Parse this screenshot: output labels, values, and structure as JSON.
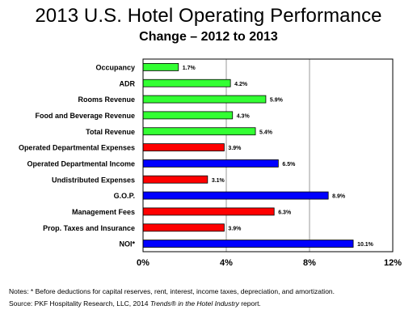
{
  "title": "2013 U.S. Hotel Operating Performance",
  "subtitle": "Change – 2012 to 2013",
  "notes": {
    "line1": "Notes: * Before deductions for capital reserves, rent, interest, income taxes, depreciation, and amortization.",
    "line2_prefix": "Source: PKF Hospitality Research, LLC, 2014 ",
    "line2_italic": "Trends® in the Hotel Industry",
    "line2_suffix": " report."
  },
  "colors": {
    "green": "#33ff33",
    "red": "#ff0000",
    "blue": "#0000ff",
    "grid": "#999999",
    "border": "#000000"
  },
  "chart_data": {
    "type": "bar",
    "orientation": "horizontal",
    "categories": [
      "Occupancy",
      "ADR",
      "Rooms Revenue",
      "Food and Beverage Revenue",
      "Total Revenue",
      "Operated Departmental Expenses",
      "Operated Departmental Income",
      "Undistributed Expenses",
      "G.O.P.",
      "Management Fees",
      "Prop. Taxes and Insurance",
      "NOI*"
    ],
    "values": [
      1.7,
      4.2,
      5.9,
      4.3,
      5.4,
      3.9,
      6.5,
      3.1,
      8.9,
      6.3,
      3.9,
      10.1
    ],
    "data_labels": [
      "1.7%",
      "4.2%",
      "5.9%",
      "4.3%",
      "5.4%",
      "3.9%",
      "6.5%",
      "3.1%",
      "8.9%",
      "6.3%",
      "3.9%",
      "10.1%"
    ],
    "bar_colors": [
      "green",
      "green",
      "green",
      "green",
      "green",
      "red",
      "blue",
      "red",
      "blue",
      "red",
      "red",
      "blue"
    ],
    "xlim": [
      0,
      12
    ],
    "x_ticks": [
      0,
      4,
      8,
      12
    ],
    "x_tick_labels": [
      "0%",
      "4%",
      "8%",
      "12%"
    ],
    "grid": "vertical",
    "legend": "none"
  }
}
